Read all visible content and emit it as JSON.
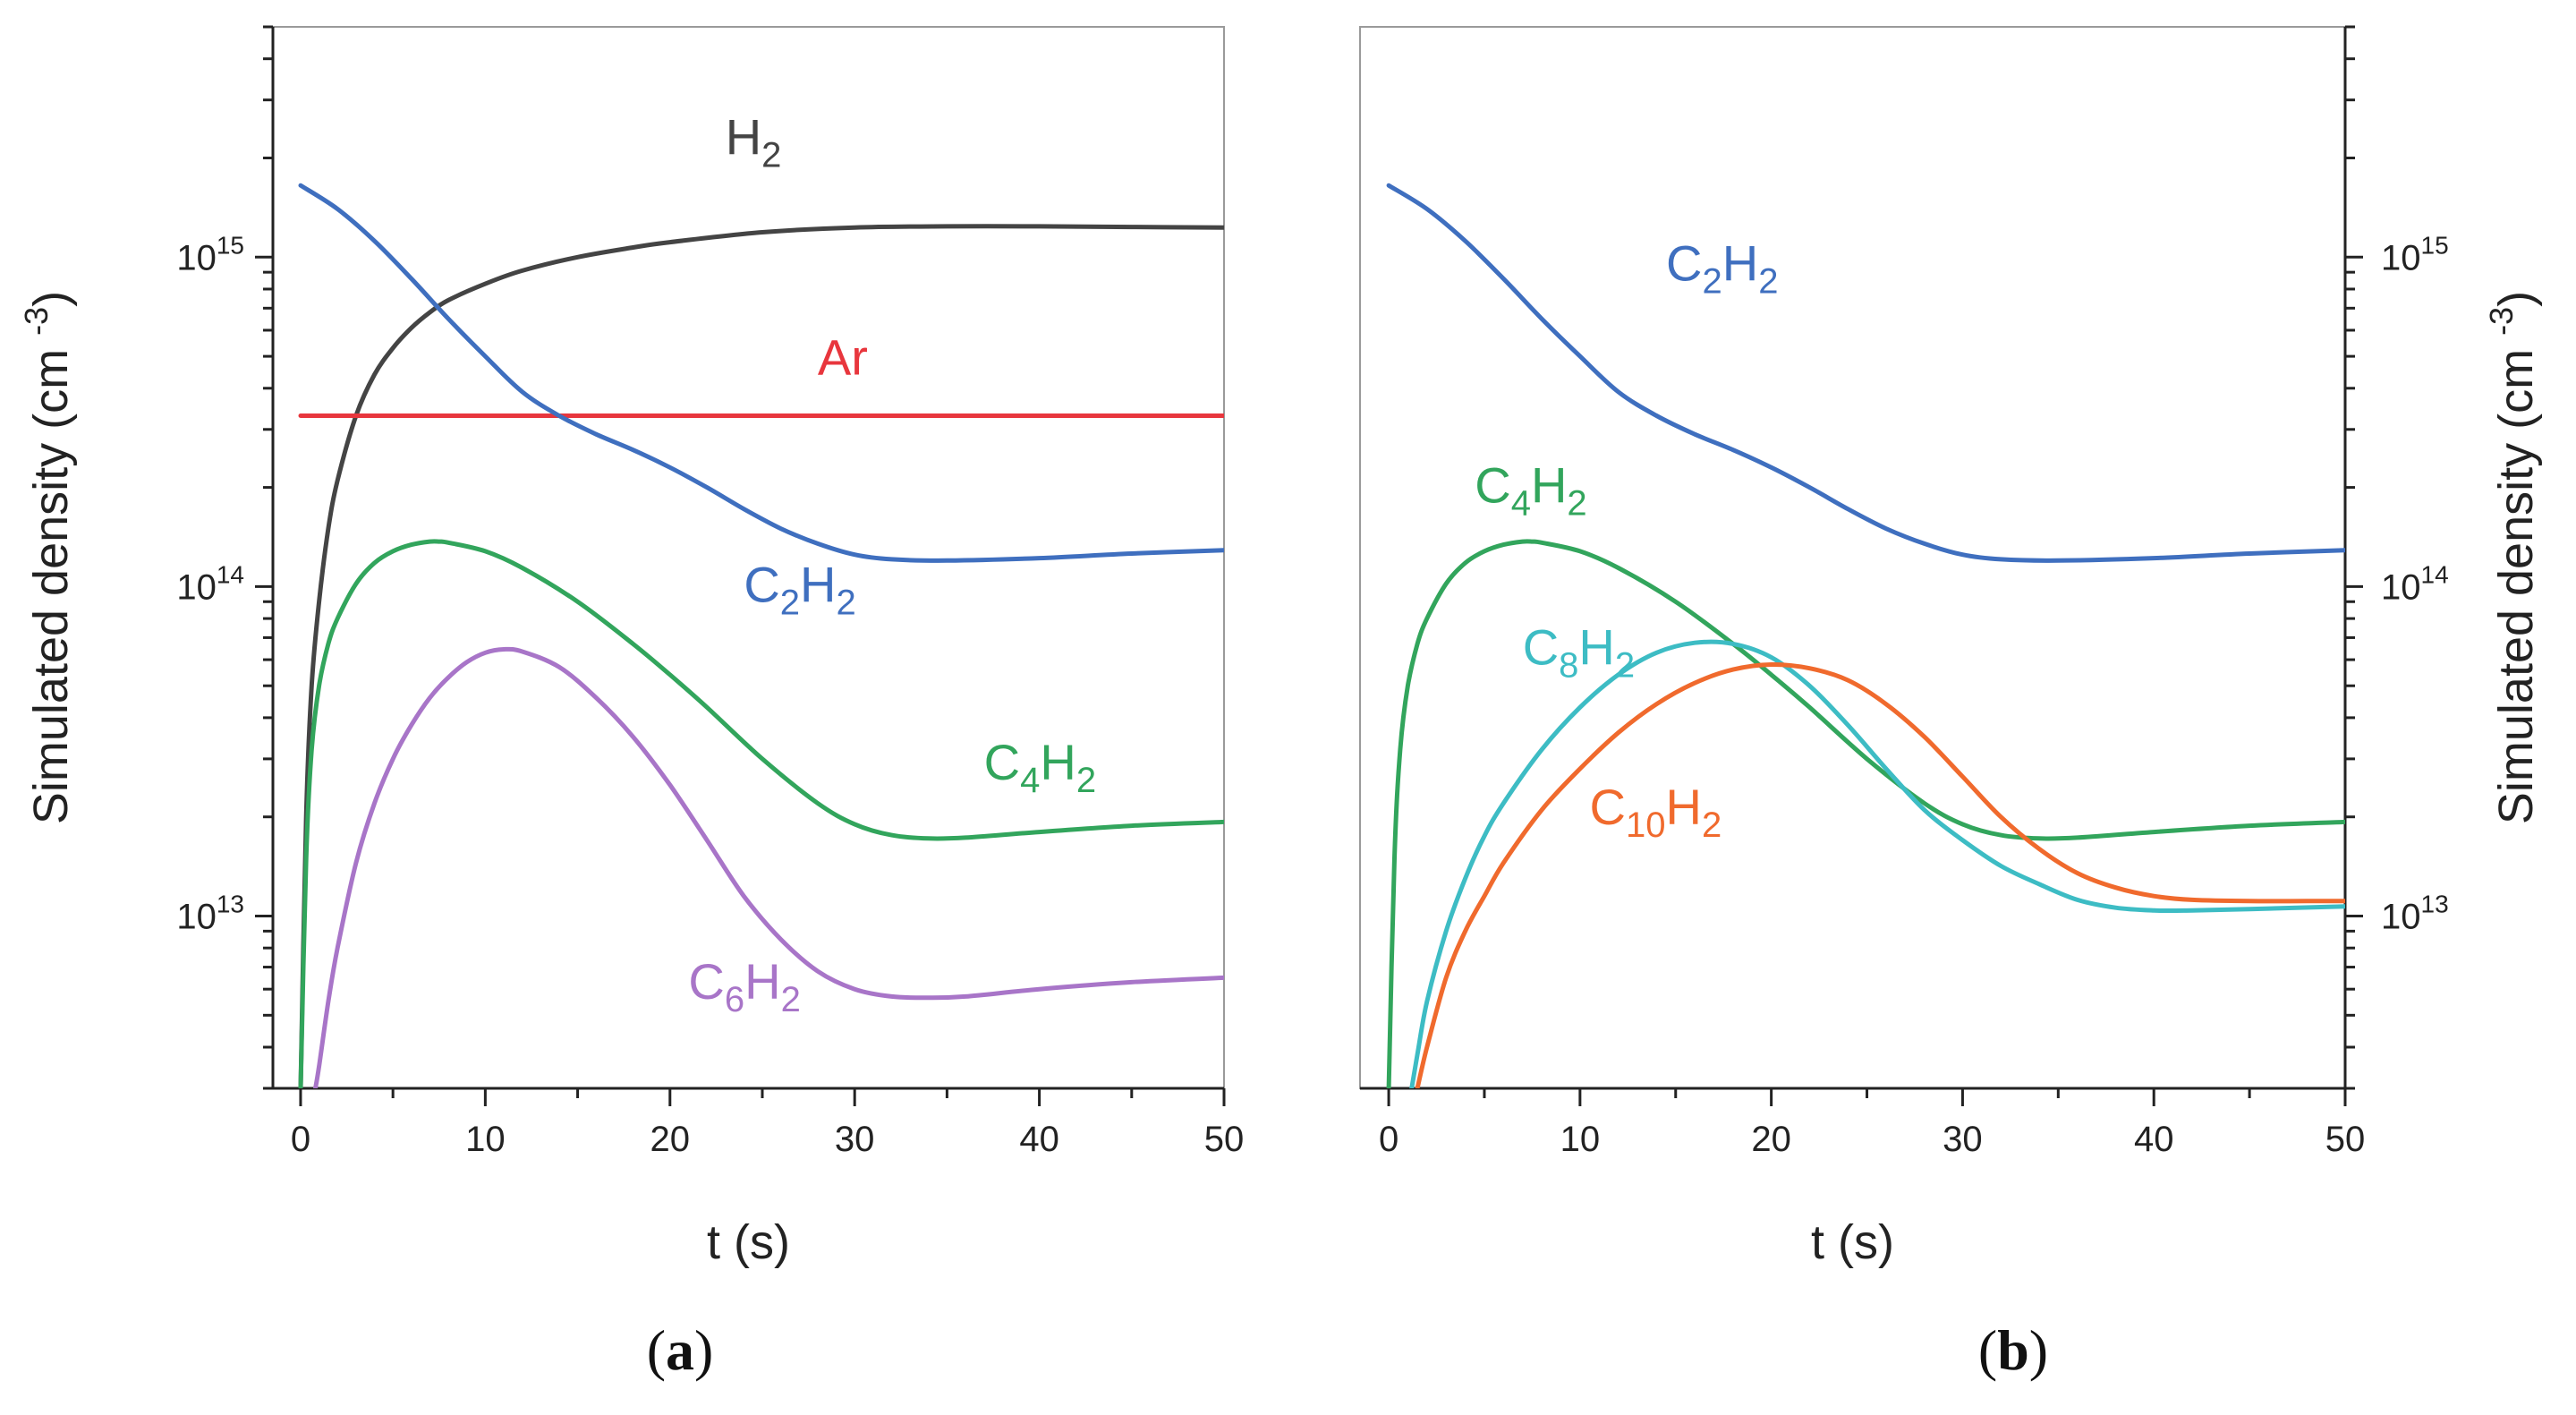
{
  "chart_data": [
    {
      "type": "line",
      "panel_label": {
        "open": "(",
        "letter": "a",
        "close": ")"
      },
      "xlabel": "t (s)",
      "ylabel": "Simulated density (cm ",
      "ylabel_sup": "-3",
      "ylabel_close": ")",
      "y_axis_side": "left",
      "y_scale": "log",
      "xlim": [
        -1.5,
        50
      ],
      "ylim": [
        3000000000000.0,
        5000000000000000.0
      ],
      "x_ticks": [
        0,
        10,
        20,
        30,
        40,
        50
      ],
      "y_ticks": [
        {
          "value": 10000000000000.0,
          "base": "10",
          "exp": "13"
        },
        {
          "value": 100000000000000.0,
          "base": "10",
          "exp": "14"
        },
        {
          "value": 1000000000000000.0,
          "base": "10",
          "exp": "15"
        }
      ],
      "series": [
        {
          "name": "H2",
          "label_main": "H",
          "label_sub": "2",
          "color": "#444444",
          "label_at": [
            23,
            2050000000000000.0
          ],
          "x": [
            0,
            0.3,
            0.6,
            1,
            1.5,
            2,
            3,
            4,
            5,
            6,
            7,
            8,
            10,
            12,
            15,
            18,
            20,
            25,
            30,
            35,
            40,
            45,
            50
          ],
          "y": [
            3000000000000.0,
            20000000000000.0,
            50000000000000.0,
            90000000000000.0,
            150000000000000.0,
            210000000000000.0,
            330000000000000.0,
            440000000000000.0,
            530000000000000.0,
            610000000000000.0,
            680000000000000.0,
            740000000000000.0,
            830000000000000.0,
            910000000000000.0,
            1000000000000000.0,
            1070000000000000.0,
            1110000000000000.0,
            1190000000000000.0,
            1230000000000000.0,
            1240000000000000.0,
            1240000000000000.0,
            1235000000000000.0,
            1230000000000000.0
          ]
        },
        {
          "name": "Ar",
          "label_main": "Ar",
          "label_sub": "",
          "color": "#e8363d",
          "label_at": [
            28,
            440000000000000.0
          ],
          "x": [
            0,
            50
          ],
          "y": [
            330000000000000.0,
            330000000000000.0
          ]
        },
        {
          "name": "C2H2",
          "label_main": "C",
          "label_sub": "2",
          "label_main2": "H",
          "label_sub2": "2",
          "color": "#3f6fbf",
          "label_at": [
            24,
            90000000000000.0
          ],
          "x": [
            0,
            2,
            4,
            6,
            8,
            10,
            12,
            14,
            16,
            18,
            20,
            22,
            24,
            26,
            28,
            30,
            32,
            35,
            40,
            45,
            50
          ],
          "y": [
            1650000000000000.0,
            1400000000000000.0,
            1120000000000000.0,
            860000000000000.0,
            650000000000000.0,
            500000000000000.0,
            390000000000000.0,
            330000000000000.0,
            290000000000000.0,
            260000000000000.0,
            230000000000000.0,
            200000000000000.0,
            172000000000000.0,
            150000000000000.0,
            135000000000000.0,
            125000000000000.0,
            121000000000000.0,
            120000000000000.0,
            122000000000000.0,
            126000000000000.0,
            129000000000000.0
          ]
        },
        {
          "name": "C4H2",
          "label_main": "C",
          "label_sub": "4",
          "label_main2": "H",
          "label_sub2": "2",
          "color": "#32a55c",
          "label_at": [
            37,
            26000000000000.0
          ],
          "x": [
            0,
            0.3,
            0.6,
            1,
            1.5,
            2,
            3,
            4,
            5,
            6,
            7,
            7.5,
            8,
            10,
            12,
            15,
            18,
            20,
            22,
            25,
            28,
            30,
            32,
            34,
            36,
            40,
            45,
            50
          ],
          "y": [
            3000000000000.0,
            15000000000000.0,
            32000000000000.0,
            50000000000000.0,
            67000000000000.0,
            80000000000000.0,
            102000000000000.0,
            118000000000000.0,
            128000000000000.0,
            134000000000000.0,
            137000000000000.0,
            137000000000000.0,
            136000000000000.0,
            128000000000000.0,
            114000000000000.0,
            90000000000000.0,
            67000000000000.0,
            54000000000000.0,
            43000000000000.0,
            30000000000000.0,
            22000000000000.0,
            19000000000000.0,
            17600000000000.0,
            17200000000000.0,
            17300000000000.0,
            18000000000000.0,
            18800000000000.0,
            19300000000000.0
          ]
        },
        {
          "name": "C6H2",
          "label_main": "C",
          "label_sub": "6",
          "label_main2": "H",
          "label_sub2": "2",
          "color": "#a875c8",
          "label_at": [
            21,
            5600000000000.0
          ],
          "x": [
            0.8,
            1,
            1.5,
            2,
            3,
            4,
            5,
            6,
            7,
            8,
            9,
            10,
            11,
            12,
            14,
            16,
            18,
            20,
            22,
            24,
            26,
            28,
            30,
            32,
            34,
            36,
            40,
            45,
            50
          ],
          "y": [
            3000000000000.0,
            3500000000000.0,
            5500000000000.0,
            8000000000000.0,
            14500000000000.0,
            22000000000000.0,
            30000000000000.0,
            38000000000000.0,
            46000000000000.0,
            53000000000000.0,
            59000000000000.0,
            63000000000000.0,
            64500000000000.0,
            63500000000000.0,
            57000000000000.0,
            46000000000000.0,
            35000000000000.0,
            25000000000000.0,
            17000000000000.0,
            11500000000000.0,
            8500000000000.0,
            6800000000000.0,
            6000000000000.0,
            5700000000000.0,
            5650000000000.0,
            5700000000000.0,
            6000000000000.0,
            6300000000000.0,
            6500000000000.0
          ]
        }
      ]
    },
    {
      "type": "line",
      "panel_label": {
        "open": "(",
        "letter": "b",
        "close": ")"
      },
      "xlabel": "t (s)",
      "ylabel": "Simulated density (cm ",
      "ylabel_sup": "-3",
      "ylabel_close": ")",
      "y_axis_side": "right",
      "y_scale": "log",
      "xlim": [
        -1.5,
        50
      ],
      "ylim": [
        3000000000000.0,
        5000000000000000.0
      ],
      "x_ticks": [
        0,
        10,
        20,
        30,
        40,
        50
      ],
      "y_ticks": [
        {
          "value": 10000000000000.0,
          "base": "10",
          "exp": "13"
        },
        {
          "value": 100000000000000.0,
          "base": "10",
          "exp": "14"
        },
        {
          "value": 1000000000000000.0,
          "base": "10",
          "exp": "15"
        }
      ],
      "series": [
        {
          "name": "C2H2",
          "label_main": "C",
          "label_sub": "2",
          "label_main2": "H",
          "label_sub2": "2",
          "color": "#3f6fbf",
          "label_at": [
            14.5,
            850000000000000.0
          ],
          "x": [
            0,
            2,
            4,
            6,
            8,
            10,
            12,
            14,
            16,
            18,
            20,
            22,
            24,
            26,
            28,
            30,
            32,
            35,
            40,
            45,
            50
          ],
          "y": [
            1650000000000000.0,
            1400000000000000.0,
            1120000000000000.0,
            860000000000000.0,
            650000000000000.0,
            500000000000000.0,
            390000000000000.0,
            330000000000000.0,
            290000000000000.0,
            260000000000000.0,
            230000000000000.0,
            200000000000000.0,
            172000000000000.0,
            150000000000000.0,
            135000000000000.0,
            125000000000000.0,
            121000000000000.0,
            120000000000000.0,
            122000000000000.0,
            126000000000000.0,
            129000000000000.0
          ]
        },
        {
          "name": "C4H2",
          "label_main": "C",
          "label_sub": "4",
          "label_main2": "H",
          "label_sub2": "2",
          "color": "#32a55c",
          "label_at": [
            4.5,
            180000000000000.0
          ],
          "x": [
            0,
            0.3,
            0.6,
            1,
            1.5,
            2,
            3,
            4,
            5,
            6,
            7,
            7.5,
            8,
            10,
            12,
            15,
            18,
            20,
            22,
            25,
            28,
            30,
            32,
            34,
            36,
            40,
            45,
            50
          ],
          "y": [
            3000000000000.0,
            15000000000000.0,
            32000000000000.0,
            50000000000000.0,
            67000000000000.0,
            80000000000000.0,
            102000000000000.0,
            118000000000000.0,
            128000000000000.0,
            134000000000000.0,
            137000000000000.0,
            137000000000000.0,
            136000000000000.0,
            128000000000000.0,
            114000000000000.0,
            90000000000000.0,
            67000000000000.0,
            54000000000000.0,
            43000000000000.0,
            30000000000000.0,
            22000000000000.0,
            19000000000000.0,
            17600000000000.0,
            17200000000000.0,
            17300000000000.0,
            18000000000000.0,
            18800000000000.0,
            19300000000000.0
          ]
        },
        {
          "name": "C8H2",
          "label_main": "C",
          "label_sub": "8",
          "label_main2": "H",
          "label_sub2": "2",
          "color": "#3dbcc4",
          "label_at": [
            7,
            58000000000000.0
          ],
          "x": [
            1.2,
            1.5,
            2,
            3,
            4,
            5,
            6,
            8,
            10,
            12,
            14,
            16,
            18,
            20,
            22,
            24,
            26,
            28,
            30,
            32,
            34,
            36,
            38,
            40,
            42,
            45,
            50
          ],
          "y": [
            3000000000000.0,
            3800000000000.0,
            5500000000000.0,
            9000000000000.0,
            13000000000000.0,
            17500000000000.0,
            22000000000000.0,
            32000000000000.0,
            43000000000000.0,
            54000000000000.0,
            63000000000000.0,
            67500000000000.0,
            67000000000000.0,
            61000000000000.0,
            50000000000000.0,
            38000000000000.0,
            28000000000000.0,
            21000000000000.0,
            17000000000000.0,
            14200000000000.0,
            12500000000000.0,
            11200000000000.0,
            10600000000000.0,
            10400000000000.0,
            10400000000000.0,
            10500000000000.0,
            10700000000000.0
          ]
        },
        {
          "name": "C10H2",
          "label_main": "C",
          "label_sub": "10",
          "label_main2": "H",
          "label_sub2": "2",
          "color": "#f06a2d",
          "label_at": [
            10.5,
            19000000000000.0
          ],
          "x": [
            1.5,
            2,
            3,
            4,
            5,
            6,
            8,
            10,
            12,
            14,
            16,
            18,
            20,
            22,
            24,
            26,
            28,
            30,
            32,
            34,
            36,
            38,
            40,
            42,
            45,
            48,
            50
          ],
          "y": [
            3000000000000.0,
            4000000000000.0,
            6500000000000.0,
            9000000000000.0,
            11500000000000.0,
            14500000000000.0,
            21000000000000.0,
            28000000000000.0,
            36000000000000.0,
            44000000000000.0,
            51000000000000.0,
            56000000000000.0,
            58000000000000.0,
            56500000000000.0,
            52000000000000.0,
            44000000000000.0,
            35000000000000.0,
            26500000000000.0,
            20000000000000.0,
            16000000000000.0,
            13500000000000.0,
            12200000000000.0,
            11500000000000.0,
            11200000000000.0,
            11100000000000.0,
            11100000000000.0,
            11100000000000.0
          ]
        }
      ]
    }
  ]
}
